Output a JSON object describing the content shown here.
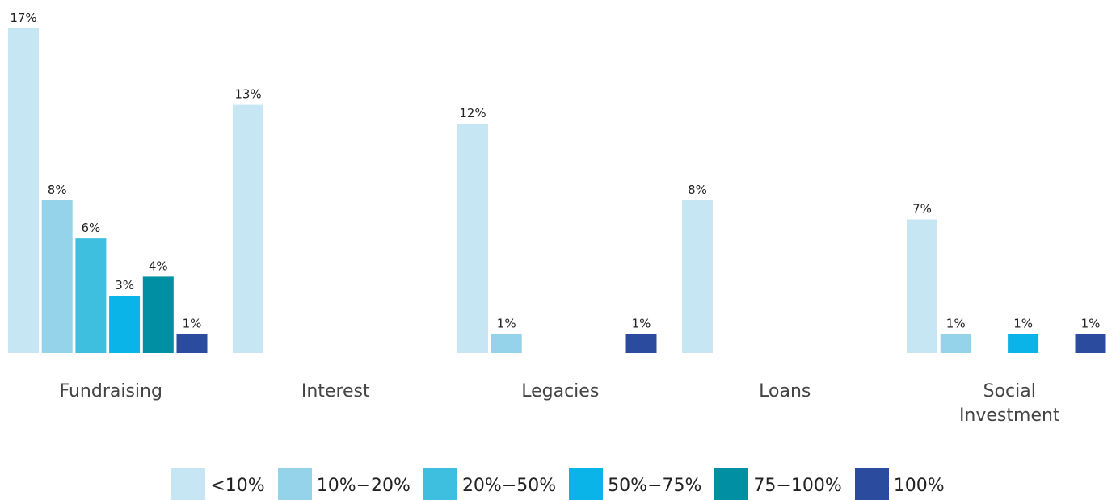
{
  "chart_data": {
    "type": "bar",
    "categories": [
      "Fundraising",
      "Interest",
      "Legacies",
      "Loans",
      "Social Investment"
    ],
    "series": [
      {
        "name": "<10%",
        "color": "#c6e6f3",
        "values": [
          17,
          13,
          12,
          8,
          7
        ],
        "value_labels": [
          "17%",
          "13%",
          "12%",
          "8%",
          "7%"
        ]
      },
      {
        "name": "10%−20%",
        "color": "#95d3eb",
        "values": [
          8,
          null,
          1,
          null,
          1
        ],
        "value_labels": [
          "8%",
          null,
          "1%",
          null,
          "1%"
        ]
      },
      {
        "name": "20%−50%",
        "color": "#3fbfe0",
        "values": [
          6,
          null,
          null,
          null,
          null
        ],
        "value_labels": [
          "6%",
          null,
          null,
          null,
          null
        ]
      },
      {
        "name": "50%−75%",
        "color": "#0ab4e8",
        "values": [
          3,
          null,
          null,
          null,
          1
        ],
        "value_labels": [
          "3%",
          null,
          null,
          null,
          "1%"
        ]
      },
      {
        "name": "75−100%",
        "color": "#008fa3",
        "values": [
          4,
          null,
          null,
          null,
          null
        ],
        "value_labels": [
          "4%",
          null,
          null,
          null,
          null
        ]
      },
      {
        "name": "100%",
        "color": "#2b4c9e",
        "values": [
          1,
          null,
          1,
          null,
          1
        ],
        "value_labels": [
          "1%",
          null,
          "1%",
          null,
          "1%"
        ]
      }
    ],
    "legend": "bottom"
  }
}
